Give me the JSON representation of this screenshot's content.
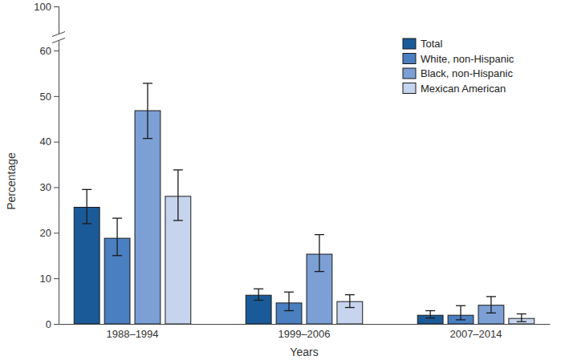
{
  "chart_data": {
    "type": "bar",
    "x_label": "Years",
    "y_label": "Percentage",
    "categories": [
      "1988–1994",
      "1999–2006",
      "2007–2014"
    ],
    "series": [
      {
        "name": "Total",
        "color": "#1b5a98",
        "values": [
          25.6,
          6.3,
          1.9
        ],
        "ci": [
          [
            22,
            29.5
          ],
          [
            5.2,
            7.7
          ],
          [
            1.3,
            2.9
          ]
        ]
      },
      {
        "name": "White, non-Hispanic",
        "color": "#4a7fc1",
        "values": [
          18.8,
          4.6,
          1.9
        ],
        "ci": [
          [
            15,
            23.2
          ],
          [
            2.9,
            7
          ],
          [
            0.9,
            4
          ]
        ]
      },
      {
        "name": "Black, non-Hispanic",
        "color": "#7c9fd6",
        "values": [
          46.8,
          15.3,
          4.1
        ],
        "ci": [
          [
            40.7,
            52.8
          ],
          [
            11.5,
            19.6
          ],
          [
            2.4,
            6
          ]
        ]
      },
      {
        "name": "Mexican American",
        "color": "#c6d4ee",
        "values": [
          28,
          4.9,
          1.2
        ],
        "ci": [
          [
            22.7,
            33.8
          ],
          [
            3.6,
            6.4
          ],
          [
            0.5,
            2.2
          ]
        ]
      }
    ],
    "ylim": [
      0,
      100
    ],
    "yticks": [
      0,
      10,
      20,
      30,
      40,
      50,
      60,
      100
    ],
    "legend": "top-right",
    "grid": false
  }
}
